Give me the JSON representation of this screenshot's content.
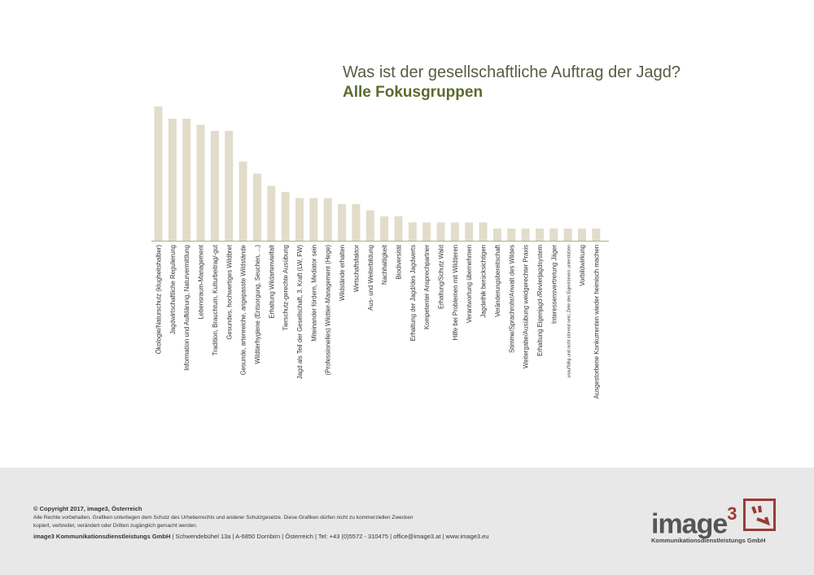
{
  "chart_data": {
    "type": "bar",
    "title": "Was ist der gesellschaftliche Auftrag der Jagd?",
    "subtitle": "Alle Fokusgruppen",
    "xlabel": "",
    "ylabel": "",
    "categories": [
      "Ökologie/Naturschutz (klugheitshalber)",
      "Jagdwirtschaftliche Regulierung",
      "Information und Aufklärung, Naturvermittlung",
      "Lebensraum-Management",
      "Tradition, Brauchtum, Kulturbeitrag/-gut",
      "Gesundes, hochwertiges Wildbret",
      "Gesunde, artenreiche, angepasste Wildstände",
      "Wildtierhygiene (Entsorgung, Seuchen, ...)",
      "Erhaltung Wildartenvielfalt",
      "Tierschutz-gerechte Ausübung",
      "Jagd als Teil der Gesellschaft, 3. Kraft (LW, FW)",
      "Miteinander fördern, Mediator sein",
      "(Professionelles) Wildtier-Management (Hege)",
      "Wildstände erhalten",
      "Wirtschaftsfaktor",
      "Aus- und Weiterbildung",
      "Nachhaltigkeit",
      "Biodiversität",
      "Erhaltung der Jagd/des Jagdwerts",
      "Kompetenter Ansprechpartner",
      "Erhaltung/Schutz Wald",
      "Hilfe bei Problemen mit Wildtieren",
      "Verantwortung übernehmen",
      "Jagdethik berücksichtigen",
      "Veränderungsbereitschaft",
      "Stimme/Sprachrohr/Anwalt des Wildes",
      "Weitergabe/Ausübung weidgerechter Praxis",
      "Erhaltung Eigenjagd-/Revierjagdsystem",
      "Interessensvertretung Jäger",
      "unauffällig und nicht störend sein; Ziele des Eigentümers unterstützen",
      "Vorbildwirkung",
      "Ausgestorbene Konkurrenten wieder heimisch machen"
    ],
    "values": [
      22,
      20,
      20,
      19,
      18,
      18,
      13,
      11,
      9,
      8,
      7,
      7,
      7,
      6,
      6,
      5,
      4,
      4,
      3,
      3,
      3,
      3,
      3,
      3,
      2,
      2,
      2,
      2,
      2,
      2,
      2,
      2
    ],
    "ylim": [
      0,
      22
    ],
    "grid": false,
    "bar_color": "#e2dccb"
  },
  "footer": {
    "copyright": "© Copyright 2017, image3, Österreich",
    "rights": "Alle Rechte vorbehalten. Grafiken unterliegen dem Schutz des Urheberrechts und anderer Schutzgesetze. Diese Grafiken dürfen nicht zu kommerziellen Zwecken kopiert, verbreitet, verändert oder Dritten zugänglich gemacht werden.",
    "company": "image3 Kommunikationsdienstleistungs GmbH",
    "address": " | Schwendebühel 13a  |  A-6850 Dornbirn  |  Österreich  |  Tel: +43 (0)5572 - 310475  |  office@image3.at  |  www.image3.eu"
  },
  "logo": {
    "word": "image",
    "sup": "3",
    "sub": "Kommunikationsdienstleistungs GmbH"
  }
}
